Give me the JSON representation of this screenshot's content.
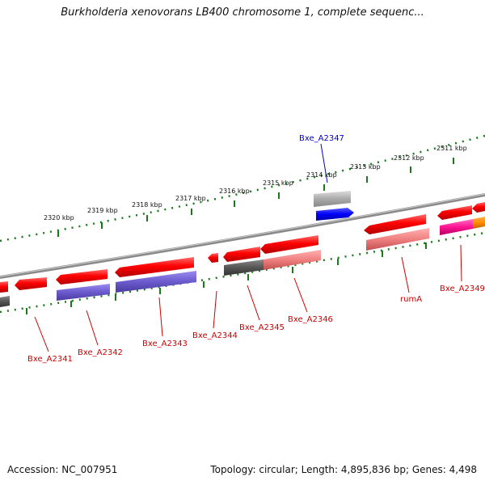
{
  "title": "Burkholderia xenovorans LB400 chromosome 1, complete sequenc...",
  "footer": {
    "accession": "Accession: NC_007951",
    "summary": "Topology: circular; Length: 4,895,836 bp; Genes: 4,498"
  },
  "ticks": [
    {
      "label": "2320 kbp",
      "x": 2320
    },
    {
      "label": "2319 kbp",
      "x": 2319
    },
    {
      "label": "2318 kbp",
      "x": 2318
    },
    {
      "label": "2317 kbp",
      "x": 2317
    },
    {
      "label": "2316 kbp",
      "x": 2316
    },
    {
      "label": "2315 kbp",
      "x": 2315
    },
    {
      "label": "2314 kbp",
      "x": 2314
    },
    {
      "label": "2313 kbp",
      "x": 2313
    },
    {
      "label": "2312 kbp",
      "x": 2312
    },
    {
      "label": "2311 kbp",
      "x": 2311
    }
  ],
  "gene_labels": [
    {
      "name": "Bxe_A2347",
      "color": "#0000cc"
    },
    {
      "name": "Bxe_A2341",
      "color": "#cc0000"
    },
    {
      "name": "Bxe_A2342",
      "color": "#cc0000"
    },
    {
      "name": "Bxe_A2343",
      "color": "#cc0000"
    },
    {
      "name": "Bxe_A2344",
      "color": "#cc0000"
    },
    {
      "name": "Bxe_A2345",
      "color": "#cc0000"
    },
    {
      "name": "Bxe_A2346",
      "color": "#cc0000"
    },
    {
      "name": "rumA",
      "color": "#cc0000"
    },
    {
      "name": "Bxe_A2349",
      "color": "#cc0000"
    }
  ],
  "colors": {
    "cds": "#ff0000",
    "cds_light": "#f08080",
    "purple": "#6a5acd",
    "blue": "#0000ff",
    "gray": "#555555",
    "light_gray": "#aaaaaa",
    "magenta": "#ff1493",
    "orange": "#ff8c00",
    "ruler": "#1a7a1a",
    "backbone": "#888888"
  }
}
